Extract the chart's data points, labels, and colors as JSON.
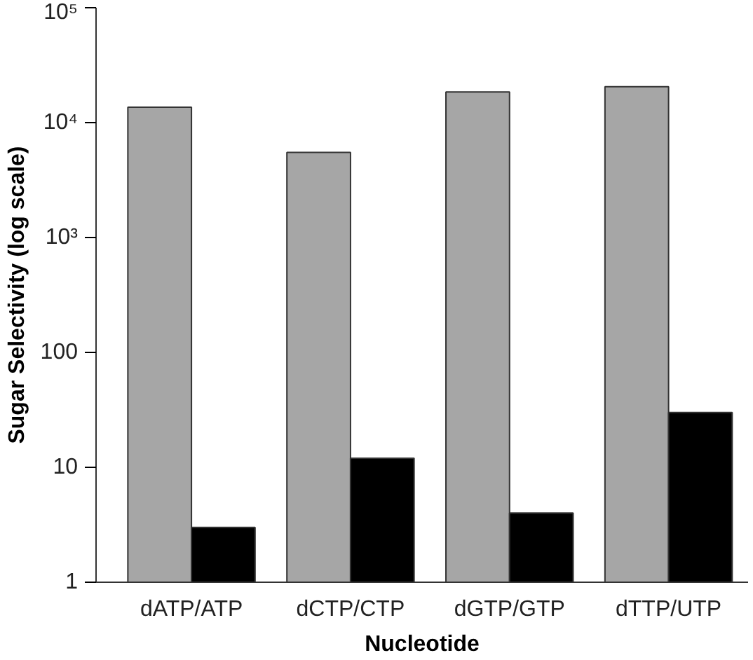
{
  "chart_data": {
    "type": "bar",
    "xlabel": "Nucleotide",
    "ylabel": "Sugar Selectivity (log scale)",
    "categories": [
      "dATP/ATP",
      "dCTP/CTP",
      "dGTP/GTP",
      "dTTP/UTP"
    ],
    "series": [
      {
        "color": "#a6a6a6",
        "values": [
          13600,
          5500,
          18500,
          20500
        ]
      },
      {
        "color": "#000000",
        "values": [
          3,
          12,
          4,
          30
        ]
      }
    ],
    "log": "y",
    "ylim": [
      1,
      100000
    ],
    "yticks": [
      1,
      10,
      100,
      {
        "value": 1000,
        "label": "10³"
      },
      {
        "value": 10000,
        "label": "10⁴"
      },
      {
        "value": 100000,
        "label": "10⁵"
      }
    ],
    "grid": false
  }
}
